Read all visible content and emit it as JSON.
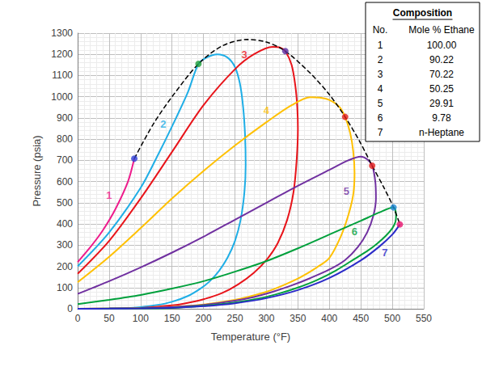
{
  "chart_data": {
    "type": "line",
    "x_label": "Temperature (°F)",
    "y_label": "Pressure (psia)",
    "xlim": [
      0,
      550
    ],
    "xticks": [
      0,
      50,
      100,
      150,
      200,
      250,
      300,
      350,
      400,
      450,
      500,
      550
    ],
    "ylim": [
      0,
      1300
    ],
    "yticks": [
      0,
      100,
      200,
      300,
      400,
      500,
      600,
      700,
      800,
      900,
      1000,
      1100,
      1200,
      1300
    ],
    "grid": true,
    "series": [
      {
        "type": "line",
        "color": "#ee1c8c",
        "marker": "none",
        "line_style": "solid",
        "x": [
          0,
          20,
          40,
          60,
          80,
          90
        ],
        "values": [
          220,
          290,
          370,
          470,
          600,
          708
        ]
      },
      {
        "type": "line",
        "color": "#1faee6",
        "marker": "none",
        "line_style": "solid",
        "x": [
          0,
          50,
          100,
          125,
          150,
          175,
          192,
          205,
          222,
          238,
          250,
          258,
          263,
          266,
          267,
          265,
          259,
          250,
          238,
          225,
          210,
          195,
          175,
          150,
          125,
          100,
          75,
          50,
          0
        ],
        "values": [
          200,
          360,
          570,
          710,
          860,
          1020,
          1155,
          1185,
          1200,
          1185,
          1140,
          1060,
          950,
          820,
          680,
          550,
          420,
          320,
          240,
          180,
          130,
          95,
          60,
          33,
          17,
          8,
          3,
          1,
          0
        ]
      },
      {
        "type": "line",
        "color": "#e8141a",
        "marker": "none",
        "line_style": "solid",
        "x": [
          0,
          50,
          100,
          150,
          200,
          250,
          280,
          310,
          322,
          330,
          340,
          346,
          349,
          350,
          348,
          343,
          333,
          318,
          300,
          280,
          255,
          230,
          200,
          170,
          150,
          100,
          50,
          0
        ],
        "values": [
          165,
          320,
          520,
          740,
          960,
          1130,
          1200,
          1235,
          1232,
          1215,
          1150,
          1050,
          950,
          850,
          700,
          550,
          420,
          310,
          230,
          170,
          115,
          75,
          45,
          25,
          16,
          4,
          1,
          0
        ]
      },
      {
        "type": "line",
        "color": "#ffc000",
        "marker": "none",
        "line_style": "solid",
        "x": [
          0,
          50,
          100,
          150,
          200,
          250,
          300,
          340,
          370,
          395,
          415,
          425,
          433,
          438,
          440,
          438,
          430,
          418,
          400,
          380,
          355,
          330,
          300,
          270,
          250,
          200,
          150,
          100,
          50,
          0
        ],
        "values": [
          125,
          245,
          380,
          520,
          650,
          770,
          880,
          960,
          998,
          990,
          955,
          905,
          830,
          740,
          640,
          540,
          440,
          340,
          240,
          195,
          150,
          115,
          80,
          55,
          42,
          20,
          9,
          3,
          1,
          0
        ]
      },
      {
        "type": "line",
        "color": "#7030a0",
        "marker": "none",
        "line_style": "solid",
        "x": [
          0,
          50,
          100,
          150,
          200,
          250,
          300,
          350,
          400,
          430,
          450,
          460,
          468,
          473,
          474,
          470,
          460,
          445,
          425,
          400,
          370,
          340,
          310,
          280,
          250,
          200,
          150,
          100,
          50,
          0
        ],
        "values": [
          70,
          130,
          195,
          265,
          340,
          420,
          500,
          580,
          655,
          700,
          718,
          705,
          675,
          600,
          520,
          440,
          360,
          290,
          230,
          185,
          145,
          110,
          80,
          55,
          38,
          18,
          8,
          3,
          1,
          0
        ]
      },
      {
        "type": "line",
        "color": "#00a03c",
        "marker": "none",
        "line_style": "solid",
        "x": [
          0,
          50,
          100,
          150,
          200,
          250,
          300,
          350,
          400,
          450,
          480,
          502,
          506,
          505,
          500,
          490,
          475,
          460,
          440,
          410,
          380,
          350,
          320,
          290,
          250,
          200,
          150,
          100,
          50,
          0
        ],
        "values": [
          22,
          42,
          65,
          95,
          130,
          175,
          225,
          285,
          350,
          415,
          455,
          478,
          440,
          410,
          380,
          345,
          305,
          272,
          235,
          180,
          135,
          100,
          72,
          50,
          30,
          14,
          4,
          1.5,
          0.5,
          0
        ]
      },
      {
        "type": "line",
        "color": "#2b2bc8",
        "marker": "none",
        "line_style": "solid",
        "x": [
          0,
          50,
          100,
          150,
          200,
          250,
          300,
          350,
          400,
          450,
          480,
          500,
          512
        ],
        "values": [
          0,
          0.5,
          2,
          5,
          12,
          26,
          50,
          88,
          145,
          228,
          295,
          350,
          398
        ]
      },
      {
        "type": "line",
        "color": "#000000",
        "marker": "none",
        "line_style": "dashed",
        "x": [
          90,
          120,
          150,
          192,
          230,
          270,
          300,
          330,
          370,
          400,
          425,
          448,
          468,
          486,
          502,
          512
        ],
        "values": [
          708,
          870,
          1000,
          1155,
          1240,
          1270,
          1258,
          1215,
          1110,
          1010,
          905,
          790,
          675,
          575,
          478,
          398
        ]
      },
      {
        "type": "scatter",
        "marker": "circle",
        "colors": [
          "#2e3fd6",
          "#1e9e3a",
          "#5a2ca0",
          "#e3201b",
          "#e3201b",
          "#1f8ad6",
          "#e8146e"
        ],
        "x": [
          90,
          192,
          330,
          425,
          468,
          502,
          512
        ],
        "values": [
          708,
          1155,
          1215,
          905,
          675,
          478,
          398
        ]
      }
    ],
    "annotations": [
      {
        "text": "1",
        "x": 50,
        "y": 534,
        "color": "#ee1c8c"
      },
      {
        "text": "2",
        "x": 136,
        "y": 873,
        "color": "#1faee6"
      },
      {
        "text": "3",
        "x": 265,
        "y": 1200,
        "color": "#e8141a"
      },
      {
        "text": "4",
        "x": 300,
        "y": 935,
        "color": "#ffc000"
      },
      {
        "text": "5",
        "x": 427,
        "y": 553,
        "color": "#7030a0"
      },
      {
        "text": "6",
        "x": 440,
        "y": 365,
        "color": "#00a03c"
      },
      {
        "text": "7",
        "x": 488,
        "y": 265,
        "color": "#2b2bc8"
      }
    ],
    "table": {
      "title": "Composition",
      "header": [
        "No.",
        "Mole % Ethane"
      ],
      "rows": [
        [
          "1",
          "100.00"
        ],
        [
          "2",
          "90.22"
        ],
        [
          "3",
          "70.22"
        ],
        [
          "4",
          "50.25"
        ],
        [
          "5",
          "29.91"
        ],
        [
          "6",
          "9.78"
        ],
        [
          "7",
          "n-Heptane"
        ]
      ]
    }
  }
}
